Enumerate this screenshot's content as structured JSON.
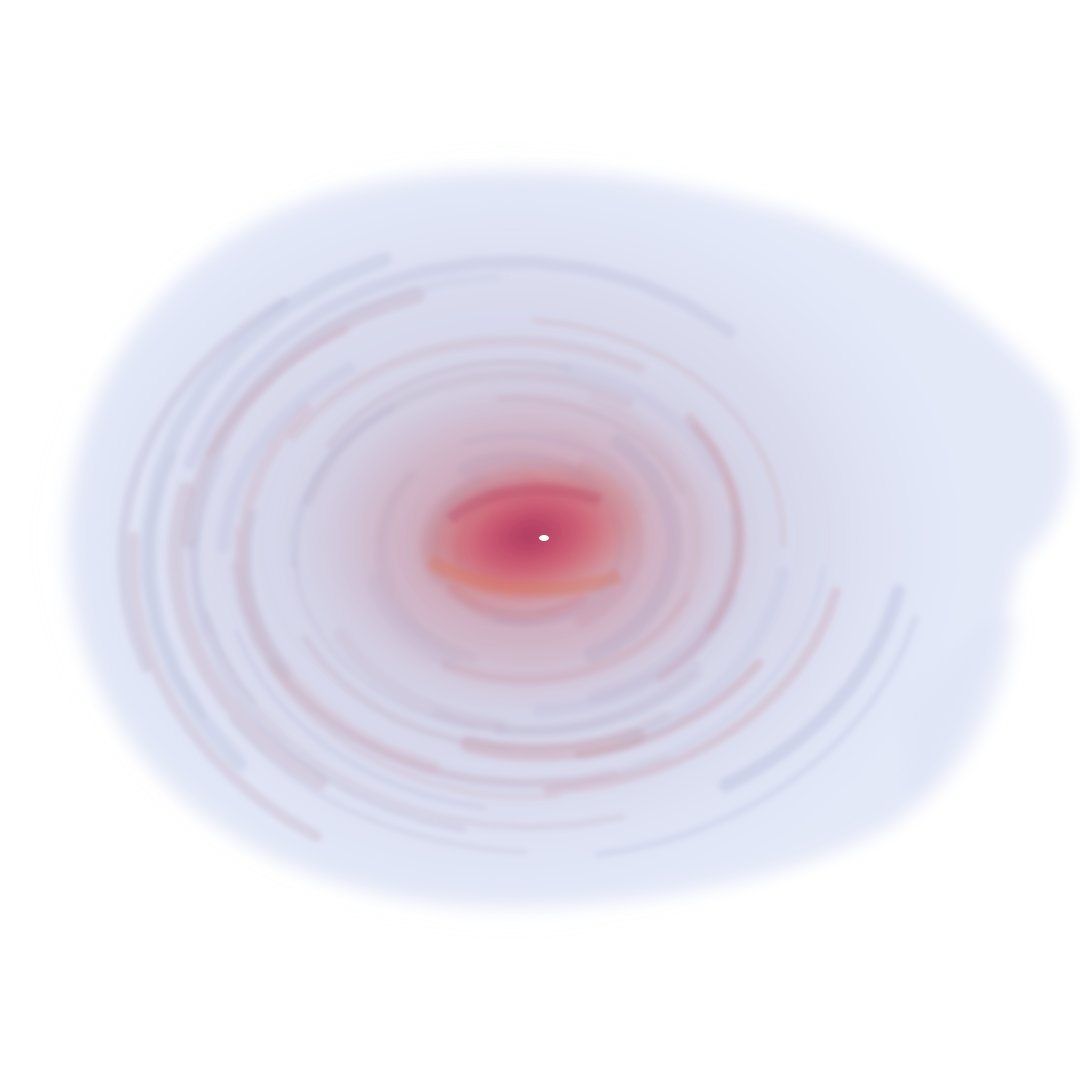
{
  "scene": {
    "subject": "swirling-disk-volume-render",
    "colors": {
      "background": "#ffffff",
      "outer_halo": "#dfe5f7",
      "mid_haze": "#c9c7de",
      "warm_haze": "#c98f9c",
      "inner_red": "#d0506a",
      "core_red": "#b83a62",
      "orange_streak": "#d9724e",
      "core_highlight": "#ffffff"
    }
  }
}
